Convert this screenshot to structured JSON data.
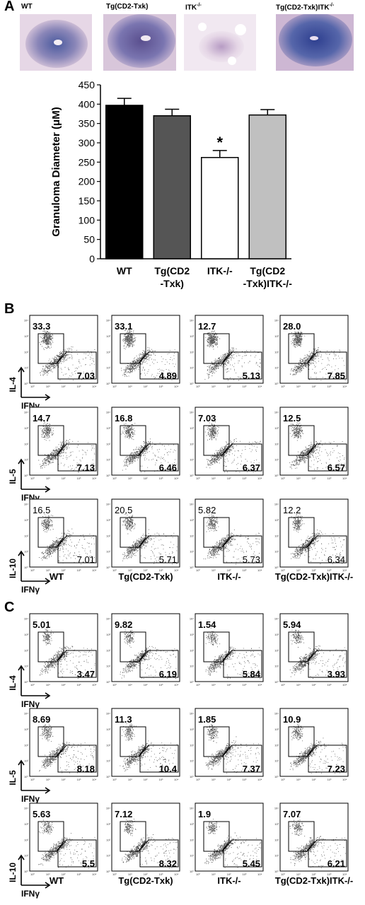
{
  "panelA": {
    "letter": "A",
    "histo_labels": [
      "WT",
      "Tg(CD2-Txk)",
      "ITK",
      "Tg(CD2-Txk)ITK"
    ],
    "histo_label_sup": "-/-",
    "chart_data": {
      "type": "bar",
      "categories": [
        "WT",
        "Tg(CD2-Txk)",
        "ITK-/-",
        "Tg(CD2-Txk)ITK-/-"
      ],
      "category_lines": [
        [
          "WT"
        ],
        [
          "Tg(CD2",
          "-Txk)"
        ],
        [
          "ITK-/-"
        ],
        [
          "Tg(CD2",
          "-Txk)ITK-/-"
        ]
      ],
      "values": [
        397,
        370,
        262,
        372
      ],
      "errors": [
        18,
        17,
        18,
        14
      ],
      "colors": [
        "#000000",
        "#555555",
        "#ffffff",
        "#c0c0c0"
      ],
      "significance": [
        "",
        "",
        "*",
        ""
      ],
      "ylabel": "Granuloma Diameter (μM)",
      "ylim": [
        0,
        450
      ],
      "yticks": [
        0,
        50,
        100,
        150,
        200,
        250,
        300,
        350,
        400,
        450
      ],
      "grid": false
    }
  },
  "panelB": {
    "letter": "B",
    "rows": [
      {
        "y_label": "IL-4",
        "top": [
          "33.3",
          "33.1",
          "12.7",
          "28.0"
        ],
        "bottom": [
          "7.03",
          "4.89",
          "5.13",
          "7.85"
        ],
        "bold": true
      },
      {
        "y_label": "IL-5",
        "top": [
          "14.7",
          "16.8",
          "7.03",
          "12.5"
        ],
        "bottom": [
          "7.13",
          "6.46",
          "6.37",
          "6.57"
        ],
        "bold": true
      },
      {
        "y_label": "IL-10",
        "top": [
          "16.5",
          "20.5",
          "5.82",
          "12.2"
        ],
        "bottom": [
          "7.01",
          "5.71",
          "5.73",
          "6.34"
        ],
        "bold": false
      }
    ],
    "x_label": "IFNγ",
    "conditions": [
      "WT",
      "Tg(CD2-Txk)",
      "ITK-/-",
      "Tg(CD2-Txk)ITK-/-"
    ]
  },
  "panelC": {
    "letter": "C",
    "rows": [
      {
        "y_label": "IL-4",
        "top": [
          "5.01",
          "9.82",
          "1.54",
          "5.94"
        ],
        "bottom": [
          "3.47",
          "6.19",
          "5.84",
          "3.93"
        ],
        "bold": true
      },
      {
        "y_label": "IL-5",
        "top": [
          "8.69",
          "11.3",
          "1.85",
          "10.9"
        ],
        "bottom": [
          "8.18",
          "10.4",
          "7.37",
          "7.23"
        ],
        "bold": true
      },
      {
        "y_label": "IL-10",
        "top": [
          "5.63",
          "7.12",
          "1.9",
          "7.07"
        ],
        "bottom": [
          "5.5",
          "8.32",
          "5.45",
          "6.21"
        ],
        "bold": true
      }
    ],
    "x_label": "IFNγ",
    "conditions": [
      "WT",
      "Tg(CD2-Txk)",
      "ITK-/-",
      "Tg(CD2-Txk)ITK-/-"
    ]
  },
  "colors": {
    "histo_bg": "#d9c7d9",
    "histo_stain": "#5b6aa8",
    "dots": "#555555"
  }
}
